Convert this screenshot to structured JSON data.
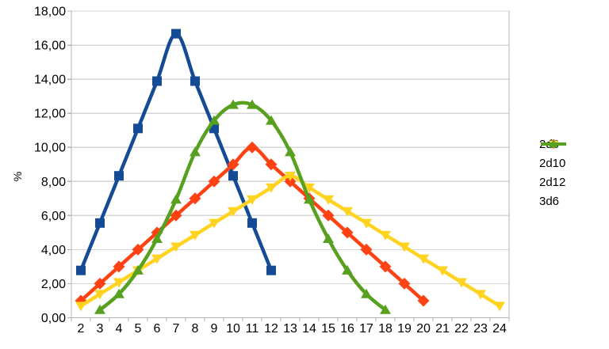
{
  "chart_data": {
    "type": "line",
    "title": "",
    "xlabel": "",
    "ylabel": "%",
    "smooth_lines": true,
    "grid": "horizontal",
    "legend_position": "right",
    "x_range": [
      2,
      24
    ],
    "ylim": [
      0,
      18
    ],
    "y_tick_step": 2,
    "decimal_separator": ",",
    "x_tick_labels": [
      "2",
      "3",
      "4",
      "5",
      "6",
      "7",
      "8",
      "9",
      "10",
      "11",
      "12",
      "13",
      "14",
      "15",
      "16",
      "17",
      "18",
      "19",
      "20",
      "21",
      "22",
      "23",
      "24"
    ],
    "y_tick_labels": [
      "0,00",
      "2,00",
      "4,00",
      "6,00",
      "8,00",
      "10,00",
      "12,00",
      "14,00",
      "16,00",
      "18,00"
    ],
    "series": [
      {
        "name": "2d6",
        "color": "#154A94",
        "marker": "square",
        "x_start": 2,
        "values": [
          2.78,
          5.56,
          8.33,
          11.11,
          13.89,
          16.67,
          13.89,
          11.11,
          8.33,
          5.56,
          2.78
        ]
      },
      {
        "name": "2d10",
        "color": "#FF4214",
        "marker": "diamond",
        "x_start": 2,
        "values": [
          1.0,
          2.0,
          3.0,
          4.0,
          5.0,
          6.0,
          7.0,
          8.0,
          9.0,
          10.0,
          9.0,
          8.0,
          7.0,
          6.0,
          5.0,
          4.0,
          3.0,
          2.0,
          1.0
        ]
      },
      {
        "name": "2d12",
        "color": "#FFD320",
        "marker": "triangle-down",
        "x_start": 2,
        "values": [
          0.69,
          1.39,
          2.08,
          2.78,
          3.47,
          4.17,
          4.86,
          5.56,
          6.25,
          6.94,
          7.64,
          8.33,
          7.64,
          6.94,
          6.25,
          5.56,
          4.86,
          4.17,
          3.47,
          2.78,
          2.08,
          1.39,
          0.69
        ]
      },
      {
        "name": "3d6",
        "color": "#58A01F",
        "marker": "triangle-up",
        "x_start": 3,
        "values": [
          0.46,
          1.39,
          2.78,
          4.63,
          6.94,
          9.72,
          11.57,
          12.5,
          12.5,
          11.57,
          9.72,
          6.94,
          4.63,
          2.78,
          1.39,
          0.46
        ]
      }
    ],
    "style_colors": {
      "background": "#ffffff",
      "gridline": "#d6d6d6",
      "axis": "#b3b3b3",
      "text": "#000000"
    }
  }
}
